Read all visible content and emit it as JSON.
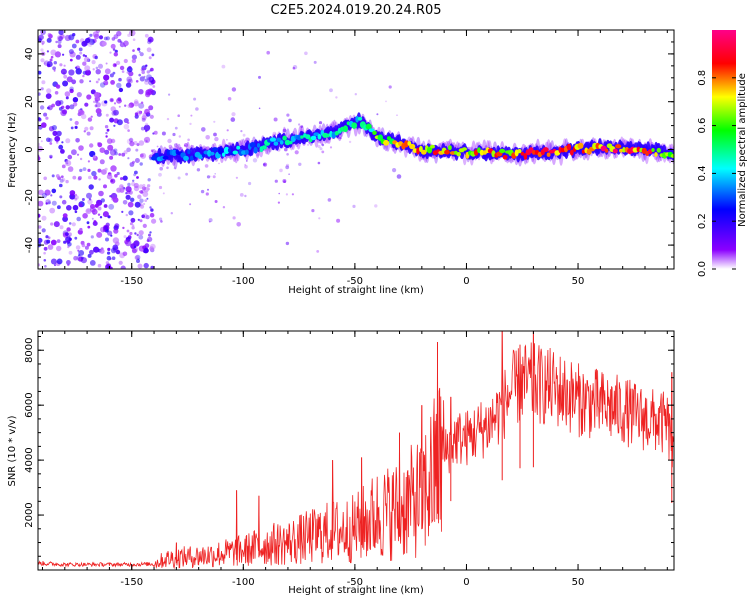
{
  "figure_title": "C2E5.2024.019.20.24.R05",
  "colors": {
    "snr_line": "#ee2222",
    "frame": "#000000",
    "ridge_base": "#1a1aff",
    "scatter": "#8a2be2"
  },
  "chart_data": [
    {
      "type": "heatmap",
      "title": "C2E5.2024.019.20.24.R05",
      "xlabel": "Height of straight line (km)",
      "ylabel": "Frequency (Hz)",
      "xlim": [
        -192,
        93
      ],
      "ylim": [
        -50,
        50
      ],
      "xticks": [
        -150,
        -100,
        -50,
        0,
        50
      ],
      "yticks": [
        -40,
        -20,
        0,
        20,
        40
      ],
      "colorbar": {
        "label": "Normalized spectral amplitude",
        "range": [
          0.0,
          1.0
        ],
        "ticks": [
          0.0,
          0.2,
          0.4,
          0.6,
          0.8
        ],
        "colormap": [
          "#ffffff",
          "#8b00ff",
          "#0000ff",
          "#00ffff",
          "#00ff00",
          "#ffff00",
          "#ff0000",
          "#ff0088"
        ]
      },
      "ridge": {
        "x": [
          -140,
          -120,
          -100,
          -80,
          -60,
          -48,
          -40,
          -30,
          -20,
          0,
          20,
          40,
          60,
          80,
          93
        ],
        "frequency": [
          -3,
          -2,
          0,
          4,
          7,
          12,
          5,
          3,
          0,
          -1,
          -2,
          -1,
          1,
          0,
          -2
        ],
        "amplitude": [
          0.35,
          0.35,
          0.4,
          0.45,
          0.45,
          0.45,
          0.6,
          0.7,
          0.8,
          0.75,
          0.8,
          0.85,
          0.85,
          0.85,
          0.7
        ]
      },
      "noise_region": {
        "x_range": [
          -192,
          -140
        ],
        "frequency_range": [
          -50,
          50
        ],
        "amplitude": 0.2
      }
    },
    {
      "type": "line",
      "xlabel": "Height of straight line (km)",
      "ylabel": "SNR (10 * v/v)",
      "xlim": [
        -192,
        93
      ],
      "ylim": [
        0,
        8700
      ],
      "xticks": [
        -150,
        -100,
        -50,
        0,
        50
      ],
      "yticks": [
        2000,
        4000,
        6000,
        8000
      ],
      "series": [
        {
          "name": "SNR",
          "x": [
            -192,
            -180,
            -165,
            -150,
            -140,
            -135,
            -130,
            -120,
            -110,
            -100,
            -90,
            -80,
            -70,
            -60,
            -50,
            -40,
            -30,
            -20,
            -15,
            -10,
            -5,
            0,
            10,
            15,
            20,
            25,
            30,
            40,
            50,
            60,
            70,
            80,
            90,
            93
          ],
          "y": [
            250,
            200,
            200,
            200,
            220,
            400,
            450,
            500,
            600,
            700,
            900,
            1000,
            1200,
            1400,
            1500,
            2000,
            2200,
            2700,
            3400,
            4200,
            4800,
            4800,
            5300,
            5800,
            6500,
            6800,
            6800,
            6600,
            6200,
            6000,
            5800,
            5500,
            5300,
            4000
          ]
        }
      ],
      "peaks": [
        {
          "x": -130,
          "y": 1000
        },
        {
          "x": -103,
          "y": 2900
        },
        {
          "x": -93,
          "y": 2700
        },
        {
          "x": -60,
          "y": 4000
        },
        {
          "x": -47,
          "y": 4100
        },
        {
          "x": -30,
          "y": 5000
        },
        {
          "x": -20,
          "y": 6000
        },
        {
          "x": -13,
          "y": 8300
        },
        {
          "x": -7,
          "y": 6300
        },
        {
          "x": 16,
          "y": 8700
        },
        {
          "x": 24,
          "y": 8200
        },
        {
          "x": 30,
          "y": 8700
        },
        {
          "x": 92,
          "y": 7200
        }
      ]
    }
  ]
}
